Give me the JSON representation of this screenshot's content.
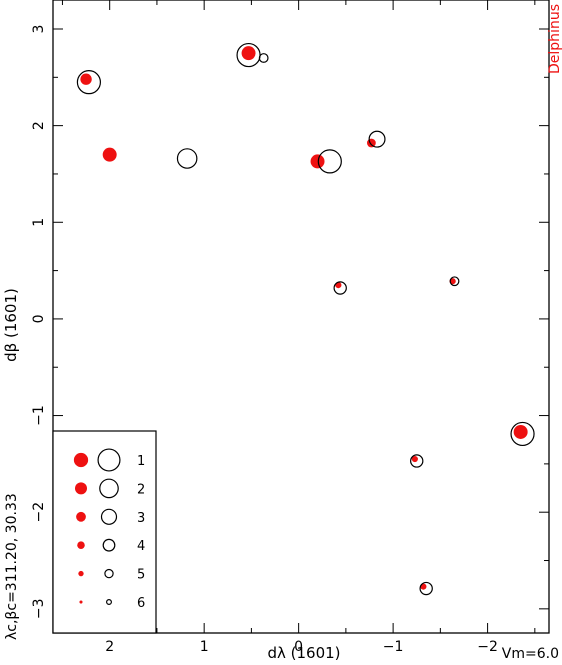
{
  "chart_data": {
    "type": "scatter",
    "title": "Delphinus",
    "xlabel": "dλ (1601)",
    "ylabel": "dβ (1601)",
    "side_label": "λc,βc=311.20, 30.33",
    "footer_label": "Vm=6.0",
    "xlim": [
      2.6,
      -2.65
    ],
    "ylim": [
      -3.25,
      3.3
    ],
    "x_ticks": [
      2,
      1,
      0,
      -1,
      -2
    ],
    "x_tick_labels": [
      "2",
      "1",
      "0",
      "−1",
      "−2"
    ],
    "y_ticks": [
      3,
      2,
      1,
      0,
      -1,
      -2,
      -3
    ],
    "y_tick_labels": [
      "3",
      "2",
      "1",
      "0",
      "−1",
      "−2",
      "−3"
    ],
    "colors": {
      "filled": "#ee1111",
      "open": "#000000"
    },
    "series": [
      {
        "name": "filled",
        "points": [
          {
            "x": 2.25,
            "y": 2.48,
            "mag": 3
          },
          {
            "x": 2.0,
            "y": 1.7,
            "mag": 2
          },
          {
            "x": 0.53,
            "y": 2.75,
            "mag": 2
          },
          {
            "x": -0.2,
            "y": 1.63,
            "mag": 2
          },
          {
            "x": -0.77,
            "y": 1.82,
            "mag": 4
          },
          {
            "x": -0.42,
            "y": 0.35,
            "mag": 5
          },
          {
            "x": -1.63,
            "y": 0.39,
            "mag": 5
          },
          {
            "x": -1.23,
            "y": -1.45,
            "mag": 5
          },
          {
            "x": -1.32,
            "y": -2.77,
            "mag": 5
          },
          {
            "x": -2.35,
            "y": -1.17,
            "mag": 2
          }
        ]
      },
      {
        "name": "open",
        "points": [
          {
            "x": 2.22,
            "y": 2.45,
            "mag": 1
          },
          {
            "x": 1.18,
            "y": 1.66,
            "mag": 2
          },
          {
            "x": 0.53,
            "y": 2.73,
            "mag": 1
          },
          {
            "x": 0.37,
            "y": 2.7,
            "mag": 5
          },
          {
            "x": -0.33,
            "y": 1.63,
            "mag": 1
          },
          {
            "x": -0.83,
            "y": 1.86,
            "mag": 3
          },
          {
            "x": -0.44,
            "y": 0.32,
            "mag": 4
          },
          {
            "x": -1.65,
            "y": 0.39,
            "mag": 5
          },
          {
            "x": -1.25,
            "y": -1.47,
            "mag": 4
          },
          {
            "x": -1.35,
            "y": -2.79,
            "mag": 4
          },
          {
            "x": -2.37,
            "y": -1.19,
            "mag": 1
          }
        ]
      }
    ],
    "legend": {
      "placement": "bottom-left",
      "entries": [
        {
          "label": "1",
          "mag": 1
        },
        {
          "label": "2",
          "mag": 2
        },
        {
          "label": "3",
          "mag": 3
        },
        {
          "label": "4",
          "mag": 4
        },
        {
          "label": "5",
          "mag": 5
        },
        {
          "label": "6",
          "mag": 6
        }
      ]
    }
  }
}
